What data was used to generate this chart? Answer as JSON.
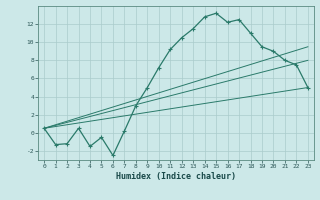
{
  "xlabel": "Humidex (Indice chaleur)",
  "x": [
    0,
    1,
    2,
    3,
    4,
    5,
    6,
    7,
    8,
    9,
    10,
    11,
    12,
    13,
    14,
    15,
    16,
    17,
    18,
    19,
    20,
    21,
    22,
    23
  ],
  "y_main": [
    0.5,
    -1.3,
    -1.2,
    0.5,
    -1.5,
    -0.5,
    -2.5,
    0.2,
    3.0,
    5.0,
    7.2,
    9.2,
    10.5,
    11.5,
    12.8,
    13.2,
    12.2,
    12.5,
    11.0,
    9.5,
    9.0,
    8.0,
    7.5,
    5.0
  ],
  "y_line1_x": [
    0,
    23
  ],
  "y_line1_y": [
    0.5,
    5.0
  ],
  "y_line2_x": [
    0,
    23
  ],
  "y_line2_y": [
    0.5,
    8.0
  ],
  "y_line3_x": [
    0,
    23
  ],
  "y_line3_y": [
    0.5,
    9.5
  ],
  "color_main": "#2a7a6a",
  "bg_color": "#cce8e8",
  "grid_color": "#aacccc",
  "ylim": [
    -3,
    14
  ],
  "yticks": [
    -2,
    0,
    2,
    4,
    6,
    8,
    10,
    12
  ],
  "xticks": [
    0,
    1,
    2,
    3,
    4,
    5,
    6,
    7,
    8,
    9,
    10,
    11,
    12,
    13,
    14,
    15,
    16,
    17,
    18,
    19,
    20,
    21,
    22,
    23
  ]
}
